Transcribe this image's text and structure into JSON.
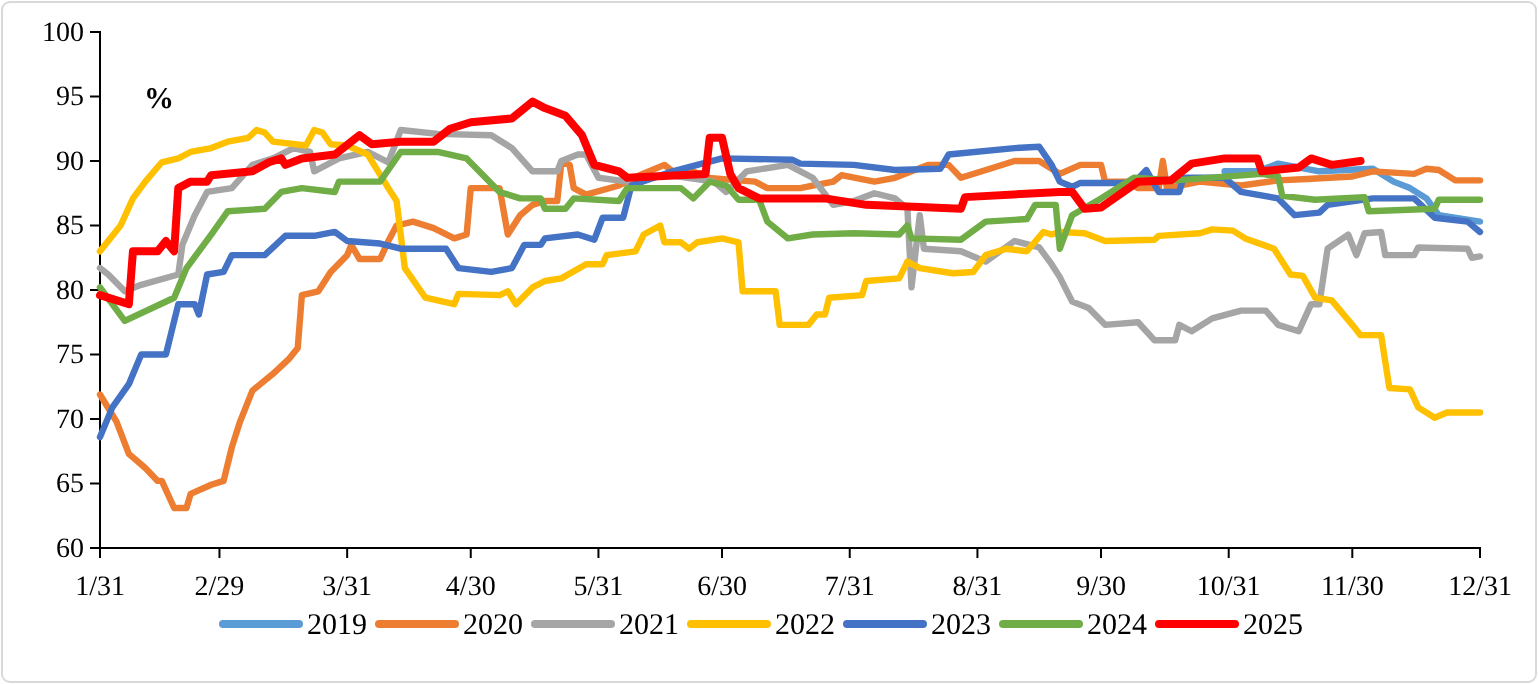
{
  "chart_data": {
    "type": "line",
    "annotations": [
      "%"
    ],
    "xlim": [
      "--01-31",
      "--12-31"
    ],
    "xticks": [
      {
        "value": "--01-31",
        "label": "1/31"
      },
      {
        "value": "--02-29",
        "label": "2/29"
      },
      {
        "value": "--03-31",
        "label": "3/31"
      },
      {
        "value": "--04-30",
        "label": "4/30"
      },
      {
        "value": "--05-31",
        "label": "5/31"
      },
      {
        "value": "--06-30",
        "label": "6/30"
      },
      {
        "value": "--07-31",
        "label": "7/31"
      },
      {
        "value": "--08-31",
        "label": "8/31"
      },
      {
        "value": "--09-30",
        "label": "9/30"
      },
      {
        "value": "--10-31",
        "label": "10/31"
      },
      {
        "value": "--11-30",
        "label": "11/30"
      },
      {
        "value": "--12-31",
        "label": "12/31"
      }
    ],
    "ylim": [
      60,
      100
    ],
    "yticks": [
      60,
      65,
      70,
      75,
      80,
      85,
      90,
      95,
      100
    ],
    "legend": "bottom",
    "marker": "none",
    "line_style": "solid",
    "series": [
      {
        "name": "2019",
        "color": "#5b9bd5",
        "x": [
          "--10-30",
          "--11-07",
          "--11-12",
          "--11-22",
          "--12-05",
          "--12-10",
          "--12-14",
          "--12-18",
          "--12-21",
          "--12-31"
        ],
        "values": [
          89.2,
          89.2,
          89.8,
          89.2,
          89.4,
          88.4,
          87.9,
          87.1,
          85.8,
          85.3
        ]
      },
      {
        "name": "2020",
        "color": "#ed7d31",
        "x": [
          "--01-31",
          "--02-04",
          "--02-07",
          "--02-11",
          "--02-14",
          "--02-15",
          "--02-18",
          "--02-21",
          "--02-22",
          "--02-27",
          "--03-01",
          "--03-03",
          "--03-05",
          "--03-08",
          "--03-13",
          "--03-17",
          "--03-19",
          "--03-20",
          "--03-24",
          "--03-27",
          "--03-31",
          "--04-01",
          "--04-03",
          "--04-08",
          "--04-10",
          "--04-12",
          "--04-16",
          "--04-21",
          "--04-26",
          "--04-29",
          "--04-30",
          "--05-07",
          "--05-09",
          "--05-12",
          "--05-15",
          "--05-18",
          "--05-21",
          "--05-22",
          "--05-24",
          "--05-25",
          "--05-28",
          "--06-05",
          "--06-10",
          "--06-16",
          "--06-18",
          "--06-23",
          "--06-26",
          "--07-08",
          "--07-11",
          "--07-19",
          "--07-22",
          "--07-27",
          "--07-29",
          "--08-06",
          "--08-11",
          "--08-19",
          "--08-24",
          "--08-27",
          "--09-04",
          "--09-09",
          "--09-15",
          "--09-19",
          "--09-20",
          "--09-25",
          "--09-30",
          "--10-01",
          "--10-06",
          "--10-09",
          "--10-14",
          "--10-15",
          "--10-16",
          "--10-24",
          "--11-03",
          "--11-12",
          "--11-19",
          "--11-30",
          "--12-05",
          "--12-15",
          "--12-18",
          "--12-21",
          "--12-25",
          "--12-31"
        ],
        "values": [
          71.9,
          69.8,
          67.3,
          66.2,
          65.2,
          65.2,
          63.1,
          63.1,
          64.2,
          64.9,
          65.2,
          67.8,
          69.8,
          72.2,
          73.5,
          74.7,
          75.5,
          79.6,
          79.9,
          81.4,
          82.7,
          83.5,
          82.4,
          82.4,
          83.8,
          85,
          85.3,
          84.8,
          84,
          84.3,
          87.9,
          87.9,
          84.3,
          85.8,
          86.6,
          86.9,
          86.9,
          89.9,
          89.7,
          87.9,
          87.4,
          88.1,
          88.9,
          89.7,
          89.2,
          89.2,
          88.7,
          88.4,
          87.9,
          87.9,
          88.1,
          88.4,
          88.9,
          88.4,
          88.7,
          89.7,
          89.7,
          88.7,
          89.5,
          90,
          90,
          89.2,
          89,
          89.7,
          89.7,
          88.4,
          88.4,
          87.9,
          87.9,
          90,
          87.9,
          88.4,
          88.1,
          88.5,
          88.6,
          88.8,
          89.2,
          89,
          89.4,
          89.3,
          88.5,
          88.5
        ]
      },
      {
        "name": "2021",
        "color": "#a5a5a5",
        "x": [
          "--01-31",
          "--02-02",
          "--02-06",
          "--02-10",
          "--02-19",
          "--02-20",
          "--02-23",
          "--02-26",
          "--03-03",
          "--03-08",
          "--03-13",
          "--03-18",
          "--03-22",
          "--03-23",
          "--03-29",
          "--04-05",
          "--04-10",
          "--04-13",
          "--04-22",
          "--05-05",
          "--05-10",
          "--05-15",
          "--05-21",
          "--05-22",
          "--05-26",
          "--05-28",
          "--05-31",
          "--06-07",
          "--06-17",
          "--06-28",
          "--07-01",
          "--07-06",
          "--07-16",
          "--07-22",
          "--07-27",
          "--08-01",
          "--08-06",
          "--08-11",
          "--08-14",
          "--08-15",
          "--08-17",
          "--08-18",
          "--08-27",
          "--09-02",
          "--09-09",
          "--09-15",
          "--09-18",
          "--09-20",
          "--09-23",
          "--09-27",
          "--10-01",
          "--10-09",
          "--10-13",
          "--10-18",
          "--10-19",
          "--10-22",
          "--10-27",
          "--11-03",
          "--11-09",
          "--11-12",
          "--11-17",
          "--11-20",
          "--11-22",
          "--11-24",
          "--11-29",
          "--12-01",
          "--12-03",
          "--12-07",
          "--12-08",
          "--12-15",
          "--12-16",
          "--12-28",
          "--12-29",
          "--12-31"
        ],
        "values": [
          81.7,
          81.2,
          79.9,
          80.4,
          81.2,
          83.5,
          85.8,
          87.6,
          87.9,
          89.7,
          90.2,
          91,
          90.7,
          89.2,
          90.2,
          90.7,
          89.9,
          92.4,
          92.1,
          92,
          91,
          89.2,
          89.2,
          90,
          90.5,
          90.5,
          88.7,
          88.4,
          88.9,
          88.4,
          87.6,
          89.2,
          89.7,
          88.7,
          86.6,
          86.9,
          87.5,
          87.1,
          86.3,
          80.2,
          85.8,
          83.2,
          83,
          82.2,
          83.8,
          83.3,
          82,
          81,
          79.1,
          78.6,
          77.3,
          77.5,
          76.1,
          76.1,
          77.3,
          76.8,
          77.8,
          78.4,
          78.4,
          77.3,
          76.8,
          78.9,
          78.9,
          83.2,
          84.3,
          82.7,
          84.4,
          84.5,
          82.7,
          82.7,
          83.3,
          83.2,
          82.5,
          82.6
        ]
      },
      {
        "name": "2022",
        "color": "#ffc000",
        "x": [
          "--01-31",
          "--02-05",
          "--02-08",
          "--02-11",
          "--02-15",
          "--02-19",
          "--02-22",
          "--02-27",
          "--03-02",
          "--03-07",
          "--03-09",
          "--03-11",
          "--03-13",
          "--03-21",
          "--03-23",
          "--03-25",
          "--03-27",
          "--03-31",
          "--04-05",
          "--04-10",
          "--04-12",
          "--04-14",
          "--04-19",
          "--04-26",
          "--04-27",
          "--05-07",
          "--05-09",
          "--05-11",
          "--05-15",
          "--05-18",
          "--05-22",
          "--05-28",
          "--06-01",
          "--06-02",
          "--06-09",
          "--06-11",
          "--06-15",
          "--06-16",
          "--06-20",
          "--06-22",
          "--06-24",
          "--06-30",
          "--07-04",
          "--07-05",
          "--07-13",
          "--07-14",
          "--07-21",
          "--07-23",
          "--07-25",
          "--07-26",
          "--08-03",
          "--08-04",
          "--08-12",
          "--08-14",
          "--08-17",
          "--08-25",
          "--08-30",
          "--09-02",
          "--09-07",
          "--09-12",
          "--09-16",
          "--09-18",
          "--09-20",
          "--09-26",
          "--10-01",
          "--10-13",
          "--10-14",
          "--10-24",
          "--10-27",
          "--11-01",
          "--11-04",
          "--11-11",
          "--11-15",
          "--11-18",
          "--11-21",
          "--11-25",
          "--11-30",
          "--12-02",
          "--12-07",
          "--12-09",
          "--12-14",
          "--12-16",
          "--12-20",
          "--12-23",
          "--12-31"
        ],
        "values": [
          83,
          85,
          87.1,
          88.4,
          89.9,
          90.2,
          90.7,
          91,
          91.5,
          91.8,
          92.4,
          92.2,
          91.5,
          91.2,
          92.4,
          92.2,
          91.3,
          91.2,
          90.5,
          87.9,
          86.9,
          81.7,
          79.4,
          78.9,
          79.7,
          79.6,
          79.9,
          78.9,
          80.2,
          80.7,
          80.9,
          82,
          82,
          82.7,
          83,
          84.3,
          85,
          83.7,
          83.7,
          83.2,
          83.7,
          84,
          83.7,
          79.9,
          79.9,
          77.3,
          77.3,
          78.1,
          78.1,
          79.4,
          79.6,
          80.7,
          80.9,
          82.2,
          81.7,
          81.3,
          81.4,
          82.7,
          83.2,
          83,
          84.5,
          84.3,
          84.5,
          84.4,
          83.8,
          83.9,
          84.2,
          84.4,
          84.7,
          84.6,
          84,
          83.2,
          81.2,
          81.1,
          79.4,
          79.2,
          77.3,
          76.5,
          76.5,
          72.4,
          72.3,
          70.9,
          70.1,
          70.5,
          70.5
        ]
      },
      {
        "name": "2023",
        "color": "#4472c4",
        "x": [
          "--01-31",
          "--02-03",
          "--02-07",
          "--02-10",
          "--02-16",
          "--02-19",
          "--02-23",
          "--02-24",
          "--02-26",
          "--03-01",
          "--03-03",
          "--03-11",
          "--03-16",
          "--03-23",
          "--03-28",
          "--03-31",
          "--04-08",
          "--04-13",
          "--04-24",
          "--04-27",
          "--05-05",
          "--05-10",
          "--05-13",
          "--05-17",
          "--05-18",
          "--05-26",
          "--05-30",
          "--06-01",
          "--06-06",
          "--06-08",
          "--06-18",
          "--06-30",
          "--07-17",
          "--07-19",
          "--08-01",
          "--08-11",
          "--08-22",
          "--08-24",
          "--09-09",
          "--09-15",
          "--09-18",
          "--09-20",
          "--09-23",
          "--09-25",
          "--10-08",
          "--10-11",
          "--10-14",
          "--10-19",
          "--10-20",
          "--10-30",
          "--11-03",
          "--11-12",
          "--11-16",
          "--11-22",
          "--11-24",
          "--12-05",
          "--12-15",
          "--12-20",
          "--12-28",
          "--12-31"
        ],
        "values": [
          68.6,
          70.9,
          72.7,
          75,
          75,
          78.9,
          78.9,
          78.1,
          81.2,
          81.4,
          82.7,
          82.7,
          84.2,
          84.2,
          84.5,
          83.8,
          83.6,
          83.2,
          83.2,
          81.7,
          81.4,
          81.7,
          83.5,
          83.5,
          84,
          84.3,
          83.9,
          85.6,
          85.6,
          88.1,
          89.2,
          90.2,
          90.1,
          89.8,
          89.7,
          89.3,
          89.4,
          90.5,
          91,
          91.1,
          89.7,
          88.4,
          88,
          88.3,
          88.3,
          89.3,
          87.6,
          87.6,
          88.7,
          88.7,
          87.6,
          87.1,
          85.8,
          86,
          86.6,
          87.1,
          87.1,
          85.6,
          85.3,
          84.5
        ]
      },
      {
        "name": "2024",
        "color": "#70ad47",
        "x": [
          "--01-31",
          "--02-06",
          "--02-18",
          "--02-21",
          "--02-27",
          "--03-02",
          "--03-11",
          "--03-15",
          "--03-20",
          "--03-28",
          "--03-29",
          "--04-08",
          "--04-13",
          "--04-22",
          "--04-29",
          "--05-07",
          "--05-12",
          "--05-17",
          "--05-18",
          "--05-23",
          "--05-25",
          "--06-05",
          "--06-07",
          "--06-20",
          "--06-23",
          "--06-27",
          "--07-01",
          "--07-04",
          "--07-09",
          "--07-11",
          "--07-16",
          "--07-22",
          "--08-01",
          "--08-12",
          "--08-14",
          "--08-15",
          "--08-27",
          "--09-02",
          "--09-12",
          "--09-14",
          "--09-18",
          "--09-19",
          "--09-20",
          "--09-23",
          "--09-30",
          "--10-08",
          "--10-18",
          "--11-08",
          "--11-12",
          "--11-13",
          "--11-21",
          "--12-03",
          "--12-04",
          "--12-20",
          "--12-21",
          "--12-31"
        ],
        "values": [
          80.2,
          77.6,
          79.4,
          81.7,
          84.3,
          86.1,
          86.3,
          87.6,
          87.9,
          87.6,
          88.4,
          88.4,
          90.7,
          90.7,
          90.2,
          87.6,
          87.1,
          87.1,
          86.3,
          86.3,
          87.1,
          86.9,
          87.9,
          87.9,
          87.1,
          88.4,
          88.1,
          87,
          87,
          85.3,
          84,
          84.3,
          84.4,
          84.3,
          85,
          84,
          83.9,
          85.3,
          85.5,
          86.6,
          86.6,
          86.6,
          83.2,
          85.8,
          87.1,
          88.7,
          88.5,
          89,
          88.8,
          87.3,
          87,
          87.2,
          86.1,
          86.3,
          87,
          87
        ]
      },
      {
        "name": "2025",
        "color": "#ff0000",
        "x": [
          "--01-31",
          "--02-07",
          "--02-08",
          "--02-14",
          "--02-16",
          "--02-18",
          "--02-19",
          "--02-22",
          "--02-26",
          "--02-27",
          "--03-08",
          "--03-12",
          "--03-15",
          "--03-16",
          "--03-20",
          "--03-28",
          "--04-03",
          "--04-06",
          "--04-13",
          "--04-21",
          "--04-25",
          "--04-30",
          "--05-10",
          "--05-15",
          "--05-18",
          "--05-23",
          "--05-27",
          "--05-30",
          "--06-05",
          "--06-07",
          "--06-26",
          "--06-27",
          "--06-30",
          "--07-02",
          "--07-04",
          "--07-09",
          "--07-25",
          "--08-04",
          "--08-27",
          "--08-28",
          "--09-20",
          "--09-23",
          "--09-26",
          "--09-30",
          "--10-09",
          "--10-17",
          "--10-22",
          "--10-30",
          "--11-07",
          "--11-08",
          "--11-17",
          "--11-20",
          "--11-25",
          "--12-02"
        ],
        "values": [
          79.6,
          78.9,
          83,
          83,
          83.8,
          83,
          87.9,
          88.4,
          88.4,
          88.9,
          89.2,
          89.9,
          90.2,
          89.7,
          90.2,
          90.5,
          92,
          91.3,
          91.5,
          91.5,
          92.5,
          93,
          93.3,
          94.6,
          94.1,
          93.5,
          92,
          89.7,
          89.2,
          88.7,
          89,
          91.8,
          91.8,
          89,
          87.9,
          87.1,
          87.1,
          86.6,
          86.3,
          87.2,
          87.6,
          87.6,
          86.3,
          86.4,
          88.4,
          88.5,
          89.8,
          90.2,
          90.2,
          89.2,
          89.5,
          90.2,
          89.7,
          90
        ]
      }
    ]
  }
}
